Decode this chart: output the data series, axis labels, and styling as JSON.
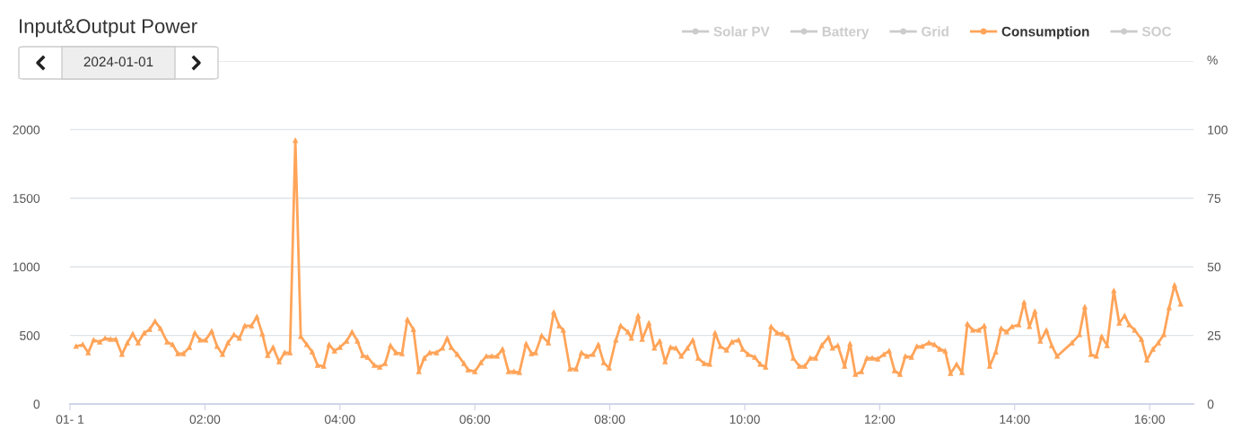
{
  "chart_data": {
    "type": "line",
    "title": "Input&Output Power",
    "subtitle": "2024-01-01",
    "y2label": "%",
    "x": [
      0.09,
      0.19,
      0.27,
      0.35,
      0.44,
      0.52,
      0.6,
      0.68,
      0.77,
      0.85,
      0.93,
      1.01,
      1.1,
      1.18,
      1.26,
      1.34,
      1.44,
      1.52,
      1.6,
      1.68,
      1.77,
      1.85,
      1.93,
      2.01,
      2.1,
      2.18,
      2.26,
      2.34,
      2.43,
      2.51,
      2.59,
      2.69,
      2.77,
      2.85,
      2.93,
      3.01,
      3.1,
      3.18,
      3.26,
      3.34,
      3.42,
      3.51,
      3.59,
      3.67,
      3.76,
      3.84,
      3.92,
      4.0,
      4.1,
      4.18,
      4.26,
      4.34,
      4.41,
      4.51,
      4.59,
      4.67,
      4.75,
      4.83,
      4.92,
      5.0,
      5.09,
      5.17,
      5.25,
      5.33,
      5.43,
      5.52,
      5.59,
      5.65,
      5.74,
      5.84,
      5.9,
      6.0,
      6.09,
      6.17,
      6.25,
      6.33,
      6.41,
      6.5,
      6.58,
      6.66,
      6.76,
      6.84,
      6.9,
      6.99,
      7.09,
      7.17,
      7.25,
      7.31,
      7.41,
      7.5,
      7.58,
      7.66,
      7.75,
      7.83,
      7.91,
      7.99,
      8.09,
      8.16,
      8.27,
      8.32,
      8.42,
      8.48,
      8.58,
      8.66,
      8.74,
      8.82,
      8.9,
      8.98,
      9.06,
      9.15,
      9.23,
      9.31,
      9.4,
      9.48,
      9.56,
      9.64,
      9.73,
      9.81,
      9.91,
      9.97,
      10.05,
      10.15,
      10.23,
      10.31,
      10.39,
      10.48,
      10.56,
      10.64,
      10.72,
      10.81,
      10.89,
      10.97,
      11.05,
      11.14,
      11.24,
      11.3,
      11.38,
      11.48,
      11.56,
      11.64,
      11.73,
      11.81,
      11.89,
      11.97,
      12.06,
      12.14,
      12.22,
      12.3,
      12.38,
      12.47,
      12.55,
      12.63,
      12.73,
      12.81,
      12.89,
      12.97,
      13.05,
      13.14,
      13.22,
      13.3,
      13.38,
      13.47,
      13.55,
      13.63,
      13.72,
      13.8,
      13.88,
      13.96,
      14.06,
      14.14,
      14.22,
      14.3,
      14.38,
      14.47,
      14.55,
      14.63,
      14.85,
      14.96,
      15.04,
      15.13,
      15.21,
      15.29,
      15.37,
      15.47,
      15.55,
      15.63,
      15.7,
      15.78,
      15.88,
      15.96,
      16.05,
      16.13,
      16.21,
      16.29,
      16.37,
      16.46
    ],
    "series": [
      {
        "name": "Solar PV",
        "color": "#cccccc",
        "values": [
          null,
          null,
          null,
          null,
          null,
          null,
          null,
          null,
          null,
          null,
          null,
          null,
          null,
          null,
          null,
          null,
          null,
          null,
          null,
          null,
          null,
          null,
          null,
          null,
          null,
          null,
          null,
          null,
          null,
          null,
          null,
          null,
          null,
          null,
          null,
          null,
          null,
          null,
          null,
          null,
          null,
          null,
          null,
          null,
          null,
          null,
          null,
          null,
          null,
          null,
          null,
          null,
          null,
          null,
          null,
          null,
          null,
          null,
          null,
          null,
          null,
          null,
          null,
          null,
          null,
          null,
          null,
          null,
          null,
          null,
          null,
          null,
          null,
          null,
          null,
          null,
          null,
          null,
          null,
          null,
          null,
          null,
          null,
          null,
          null,
          null,
          null,
          null,
          null,
          null,
          null,
          null,
          null,
          null,
          null,
          null,
          null,
          null,
          null,
          null,
          null,
          null,
          null,
          null,
          null,
          null,
          null,
          null,
          null,
          null,
          null,
          null,
          null,
          null,
          null,
          null,
          null,
          null,
          null,
          null,
          null,
          null,
          null,
          null,
          null,
          null,
          null,
          null,
          null,
          null,
          null,
          null,
          null,
          null,
          null,
          null,
          null,
          null,
          null,
          null,
          null,
          null,
          null,
          null,
          null,
          null,
          null,
          null,
          null,
          null,
          null,
          null,
          null,
          null,
          null,
          null,
          null,
          null,
          null,
          null,
          null,
          null,
          null,
          null,
          null,
          null,
          null,
          null,
          null,
          null,
          null,
          null,
          null,
          null,
          null,
          null,
          null,
          null,
          null,
          null,
          null,
          null,
          null,
          null,
          null,
          null,
          null,
          null,
          null,
          null,
          null,
          null,
          null,
          null,
          null,
          null
        ]
      },
      {
        "name": "Battery",
        "color": "#cccccc",
        "values": [
          null,
          null,
          null,
          null,
          null,
          null,
          null,
          null,
          null,
          null,
          null,
          null,
          null,
          null,
          null,
          null,
          null,
          null,
          null,
          null,
          null,
          null,
          null,
          null,
          null,
          null,
          null,
          null,
          null,
          null,
          null,
          null,
          null,
          null,
          null,
          null,
          null,
          null,
          null,
          null,
          null,
          null,
          null,
          null,
          null,
          null,
          null,
          null,
          null,
          null,
          null,
          null,
          null,
          null,
          null,
          null,
          null,
          null,
          null,
          null,
          null,
          null,
          null,
          null,
          null,
          null,
          null,
          null,
          null,
          null,
          null,
          null,
          null,
          null,
          null,
          null,
          null,
          null,
          null,
          null,
          null,
          null,
          null,
          null,
          null,
          null,
          null,
          null,
          null,
          null,
          null,
          null,
          null,
          null,
          null,
          null,
          null,
          null,
          null,
          null,
          null,
          null,
          null,
          null,
          null,
          null,
          null,
          null,
          null,
          null,
          null,
          null,
          null,
          null,
          null,
          null,
          null,
          null,
          null,
          null,
          null,
          null,
          null,
          null,
          null,
          null,
          null,
          null,
          null,
          null,
          null,
          null,
          null,
          null,
          null,
          null,
          null,
          null,
          null,
          null,
          null,
          null,
          null,
          null,
          null,
          null,
          null,
          null,
          null,
          null,
          null,
          null,
          null,
          null,
          null,
          null,
          null,
          null,
          null,
          null,
          null,
          null,
          null,
          null,
          null,
          null,
          null,
          null,
          null,
          null,
          null,
          null,
          null,
          null,
          null,
          null,
          null,
          null,
          null,
          null,
          null,
          null,
          null,
          null,
          null,
          null,
          null,
          null,
          null,
          null,
          null,
          null,
          null,
          null,
          null,
          null
        ]
      },
      {
        "name": "Grid",
        "color": "#cccccc",
        "values": [
          null,
          null,
          null,
          null,
          null,
          null,
          null,
          null,
          null,
          null,
          null,
          null,
          null,
          null,
          null,
          null,
          null,
          null,
          null,
          null,
          null,
          null,
          null,
          null,
          null,
          null,
          null,
          null,
          null,
          null,
          null,
          null,
          null,
          null,
          null,
          null,
          null,
          null,
          null,
          null,
          null,
          null,
          null,
          null,
          null,
          null,
          null,
          null,
          null,
          null,
          null,
          null,
          null,
          null,
          null,
          null,
          null,
          null,
          null,
          null,
          null,
          null,
          null,
          null,
          null,
          null,
          null,
          null,
          null,
          null,
          null,
          null,
          null,
          null,
          null,
          null,
          null,
          null,
          null,
          null,
          null,
          null,
          null,
          null,
          null,
          null,
          null,
          null,
          null,
          null,
          null,
          null,
          null,
          null,
          null,
          null,
          null,
          null,
          null,
          null,
          null,
          null,
          null,
          null,
          null,
          null,
          null,
          null,
          null,
          null,
          null,
          null,
          null,
          null,
          null,
          null,
          null,
          null,
          null,
          null,
          null,
          null,
          null,
          null,
          null,
          null,
          null,
          null,
          null,
          null,
          null,
          null,
          null,
          null,
          null,
          null,
          null,
          null,
          null,
          null,
          null,
          null,
          null,
          null,
          null,
          null,
          null,
          null,
          null,
          null,
          null,
          null,
          null,
          null,
          null,
          null,
          null,
          null,
          null,
          null,
          null,
          null,
          null,
          null,
          null,
          null,
          null,
          null,
          null,
          null,
          null,
          null,
          null,
          null,
          null,
          null,
          null,
          null,
          null,
          null,
          null,
          null,
          null,
          null,
          null,
          null,
          null,
          null,
          null,
          null,
          null,
          null,
          null,
          null,
          null,
          null
        ]
      },
      {
        "name": "Consumption",
        "color": "#ffa459",
        "values": [
          420,
          433,
          374,
          466,
          452,
          479,
          472,
          472,
          361,
          446,
          511,
          446,
          518,
          544,
          603,
          551,
          452,
          433,
          367,
          367,
          413,
          518,
          466,
          466,
          531,
          420,
          361,
          446,
          505,
          479,
          570,
          570,
          636,
          511,
          354,
          413,
          308,
          374,
          374,
          1921,
          492,
          433,
          380,
          282,
          275,
          433,
          387,
          413,
          459,
          525,
          459,
          354,
          341,
          282,
          269,
          295,
          426,
          374,
          367,
          616,
          544,
          236,
          334,
          374,
          374,
          407,
          479,
          413,
          361,
          295,
          249,
          236,
          302,
          348,
          348,
          348,
          400,
          236,
          236,
          230,
          439,
          367,
          374,
          498,
          446,
          669,
          570,
          538,
          256,
          256,
          374,
          348,
          361,
          433,
          302,
          262,
          466,
          570,
          525,
          479,
          643,
          472,
          590,
          407,
          459,
          308,
          413,
          407,
          348,
          407,
          466,
          334,
          295,
          289,
          518,
          420,
          393,
          452,
          466,
          400,
          361,
          341,
          289,
          269,
          564,
          518,
          511,
          485,
          334,
          275,
          275,
          334,
          334,
          426,
          485,
          407,
          426,
          275,
          439,
          216,
          236,
          334,
          334,
          328,
          361,
          387,
          243,
          216,
          348,
          341,
          420,
          420,
          446,
          433,
          400,
          387,
          223,
          289,
          230,
          584,
          538,
          538,
          570,
          275,
          380,
          551,
          525,
          564,
          577,
          741,
          564,
          675,
          459,
          538,
          426,
          348,
          446,
          505,
          708,
          361,
          348,
          492,
          426,
          826,
          590,
          643,
          577,
          538,
          472,
          321,
          400,
          446,
          505,
          702,
          866,
          728
        ]
      },
      {
        "name": "SOC",
        "color": "#cccccc",
        "values": [
          null,
          null,
          null,
          null,
          null,
          null,
          null,
          null,
          null,
          null,
          null,
          null,
          null,
          null,
          null,
          null,
          null,
          null,
          null,
          null,
          null,
          null,
          null,
          null,
          null,
          null,
          null,
          null,
          null,
          null,
          null,
          null,
          null,
          null,
          null,
          null,
          null,
          null,
          null,
          null,
          null,
          null,
          null,
          null,
          null,
          null,
          null,
          null,
          null,
          null,
          null,
          null,
          null,
          null,
          null,
          null,
          null,
          null,
          null,
          null,
          null,
          null,
          null,
          null,
          null,
          null,
          null,
          null,
          null,
          null,
          null,
          null,
          null,
          null,
          null,
          null,
          null,
          null,
          null,
          null,
          null,
          null,
          null,
          null,
          null,
          null,
          null,
          null,
          null,
          null,
          null,
          null,
          null,
          null,
          null,
          null,
          null,
          null,
          null,
          null,
          null,
          null,
          null,
          null,
          null,
          null,
          null,
          null,
          null,
          null,
          null,
          null,
          null,
          null,
          null,
          null,
          null,
          null,
          null,
          null,
          null,
          null,
          null,
          null,
          null,
          null,
          null,
          null,
          null,
          null,
          null,
          null,
          null,
          null,
          null,
          null,
          null,
          null,
          null,
          null,
          null,
          null,
          null,
          null,
          null,
          null,
          null,
          null,
          null,
          null,
          null,
          null,
          null,
          null,
          null,
          null,
          null,
          null,
          null,
          null,
          null,
          null,
          null,
          null,
          null,
          null,
          null,
          null,
          null,
          null,
          null,
          null,
          null,
          null,
          null,
          null,
          null,
          null,
          null,
          null,
          null,
          null,
          null,
          null,
          null,
          null,
          null,
          null,
          null,
          null,
          null,
          null,
          null,
          null,
          null,
          null
        ]
      }
    ],
    "xlim": [
      0,
      16.65
    ],
    "xticks": [
      {
        "value": 0,
        "label": "01- 1"
      },
      {
        "value": 2,
        "label": "02:00"
      },
      {
        "value": 4,
        "label": "04:00"
      },
      {
        "value": 6,
        "label": "06:00"
      },
      {
        "value": 8,
        "label": "08:00"
      },
      {
        "value": 10,
        "label": "10:00"
      },
      {
        "value": 12,
        "label": "12:00"
      },
      {
        "value": 14,
        "label": "14:00"
      },
      {
        "value": 16,
        "label": "16:00"
      }
    ],
    "ylim": [
      0,
      2500
    ],
    "yticks": [
      0,
      500,
      1000,
      1500,
      2000,
      {
        "value": 2500,
        "label": null
      }
    ],
    "y2lim": [
      0,
      125
    ],
    "y2ticks": [
      0,
      25,
      50,
      75,
      100,
      {
        "value": 125,
        "label": null
      }
    ],
    "grid": "y",
    "legend": "top right",
    "marker": "triangle",
    "line_style": "solid"
  }
}
